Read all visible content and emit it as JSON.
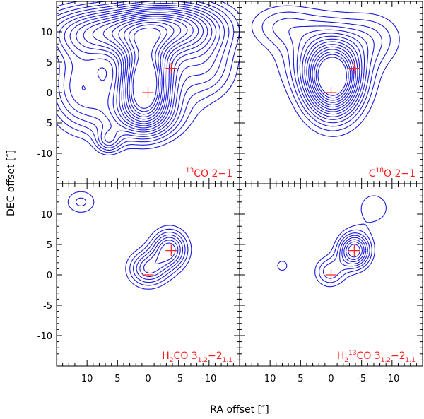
{
  "chart_data": {
    "type": "contour",
    "xlabel": "RA offset [″]",
    "ylabel": "DEC offset [″]",
    "xlim": [
      15,
      -15
    ],
    "ylim": [
      -15,
      15
    ],
    "x_ticks": [
      10,
      5,
      0,
      -5,
      -10
    ],
    "y_ticks": [
      10,
      5,
      0,
      -5,
      -10
    ],
    "markers": [
      {
        "name": "source-1",
        "ra": 0,
        "dec": 0
      },
      {
        "name": "source-2",
        "ra": -3.8,
        "dec": 4.0
      }
    ],
    "panels": [
      {
        "id": "13co",
        "label_parts": [
          {
            "text": "13",
            "style": "sup"
          },
          {
            "text": "CO 2−1",
            "style": "normal"
          }
        ],
        "components": [
          {
            "ra": 0.5,
            "dec": 2,
            "sx": 3.0,
            "sy": 4.5,
            "amp": 1.0
          },
          {
            "ra": 6,
            "dec": 10,
            "sx": 8,
            "sy": 3,
            "amp": 0.55
          },
          {
            "ra": -5,
            "dec": 11,
            "sx": 6,
            "sy": 3,
            "amp": 0.5
          },
          {
            "ra": 11,
            "dec": 1,
            "sx": 4,
            "sy": 5,
            "amp": 0.4
          },
          {
            "ra": 1,
            "dec": -4,
            "sx": 5,
            "sy": 3,
            "amp": 0.35
          },
          {
            "ra": -9,
            "dec": 4,
            "sx": 4,
            "sy": 4,
            "amp": 0.3
          },
          {
            "ra": 6.5,
            "dec": -8,
            "sx": 1.5,
            "sy": 1.5,
            "amp": 0.25
          }
        ],
        "levels": [
          0.12,
          0.17,
          0.22,
          0.27,
          0.32,
          0.37,
          0.42,
          0.47,
          0.52,
          0.57,
          0.62,
          0.67,
          0.72,
          0.77,
          0.82,
          0.87,
          0.92
        ]
      },
      {
        "id": "c18o",
        "label_parts": [
          {
            "text": "C",
            "style": "normal"
          },
          {
            "text": "18",
            "style": "sup"
          },
          {
            "text": "O 2−1",
            "style": "normal"
          }
        ],
        "components": [
          {
            "ra": -0.3,
            "dec": 1.8,
            "sx": 3.2,
            "sy": 4.2,
            "amp": 1.0
          },
          {
            "ra": 1,
            "dec": 6,
            "sx": 5,
            "sy": 4,
            "amp": 0.3
          },
          {
            "ra": 8,
            "dec": 11,
            "sx": 4,
            "sy": 2.5,
            "amp": 0.2
          },
          {
            "ra": -7,
            "dec": 9,
            "sx": 3.5,
            "sy": 3,
            "amp": 0.18
          }
        ],
        "levels": [
          0.1,
          0.16,
          0.22,
          0.28,
          0.34,
          0.4,
          0.46,
          0.52,
          0.58,
          0.64,
          0.7,
          0.76,
          0.82,
          0.88,
          0.94
        ]
      },
      {
        "id": "h2co",
        "label_parts": [
          {
            "text": "H",
            "style": "normal"
          },
          {
            "text": "2",
            "style": "sub"
          },
          {
            "text": "CO 3",
            "style": "normal"
          },
          {
            "text": "1,2",
            "style": "sub"
          },
          {
            "text": "−2",
            "style": "normal"
          },
          {
            "text": "1,1",
            "style": "sub"
          }
        ],
        "components": [
          {
            "ra": -3.5,
            "dec": 4.2,
            "sx": 2.0,
            "sy": 2.2,
            "amp": 1.0
          },
          {
            "ra": 0,
            "dec": 1,
            "sx": 2.2,
            "sy": 2.0,
            "amp": 0.8
          },
          {
            "ra": 11,
            "dec": 12,
            "sx": 2.0,
            "sy": 1.6,
            "amp": 0.35
          }
        ],
        "levels": [
          0.2,
          0.32,
          0.44,
          0.56,
          0.68,
          0.8,
          0.92
        ]
      },
      {
        "id": "h213co",
        "label_parts": [
          {
            "text": "H",
            "style": "normal"
          },
          {
            "text": "2",
            "style": "sub"
          },
          {
            "text": "13",
            "style": "sup"
          },
          {
            "text": "CO 3",
            "style": "normal"
          },
          {
            "text": "1,2",
            "style": "sub"
          },
          {
            "text": "−2",
            "style": "normal"
          },
          {
            "text": "1,1",
            "style": "sub"
          }
        ],
        "components": [
          {
            "ra": -3.8,
            "dec": 4.0,
            "sx": 1.8,
            "sy": 2.0,
            "amp": 1.0
          },
          {
            "ra": 0.2,
            "dec": 0.5,
            "sx": 1.8,
            "sy": 1.8,
            "amp": 0.45
          },
          {
            "ra": -7,
            "dec": 11,
            "sx": 2.5,
            "sy": 2.5,
            "amp": 0.25
          },
          {
            "ra": 8,
            "dec": 1.5,
            "sx": 1.2,
            "sy": 1.2,
            "amp": 0.22
          }
        ],
        "levels": [
          0.18,
          0.28,
          0.38,
          0.48,
          0.58,
          0.68,
          0.78,
          0.88
        ]
      }
    ]
  }
}
